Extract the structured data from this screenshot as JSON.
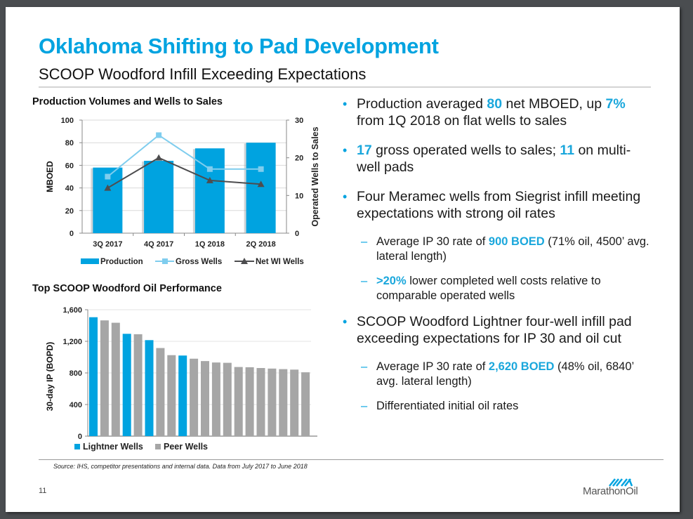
{
  "slide": {
    "title": "Oklahoma Shifting to Pad Development",
    "subtitle": "SCOOP Woodford Infill Exceeding Expectations",
    "page_number": "11",
    "source": "Source: IHS, competitor presentations and internal data. Data from July 2017 to June 2018",
    "logo_text": "MarathonOil",
    "accent_color": "#00a3e0"
  },
  "bullets": [
    {
      "type": "main",
      "parts": [
        {
          "t": "Production averaged "
        },
        {
          "t": "80",
          "hl": true
        },
        {
          "t": " net MBOED, up "
        },
        {
          "t": "7%",
          "hl": true
        },
        {
          "t": " from 1Q 2018 on flat wells to sales"
        }
      ]
    },
    {
      "type": "main",
      "parts": [
        {
          "t": "17",
          "hl": true
        },
        {
          "t": " gross operated wells to sales; "
        },
        {
          "t": "11",
          "hl": true
        },
        {
          "t": " on multi-well pads"
        }
      ]
    },
    {
      "type": "main",
      "parts": [
        {
          "t": "Four Meramec wells from Siegrist infill meeting expectations with strong oil rates"
        }
      ]
    },
    {
      "type": "sub",
      "parts": [
        {
          "t": "Average IP 30 rate of "
        },
        {
          "t": "900 BOED",
          "hl": true
        },
        {
          "t": " (71% oil, 4500’ avg. lateral length)"
        }
      ]
    },
    {
      "type": "sub",
      "parts": [
        {
          "t": ">20%",
          "hl": true
        },
        {
          "t": " lower completed well costs relative to comparable operated wells"
        }
      ]
    },
    {
      "type": "main",
      "parts": [
        {
          "t": "SCOOP Woodford Lightner four-well infill pad exceeding expectations for IP 30 and oil cut"
        }
      ]
    },
    {
      "type": "sub",
      "parts": [
        {
          "t": "Average IP 30 rate of "
        },
        {
          "t": "2,620 BOED",
          "hl": true
        },
        {
          "t": " (48% oil, 6840’ avg. lateral length)"
        }
      ]
    },
    {
      "type": "sub",
      "parts": [
        {
          "t": "Differentiated initial oil rates"
        }
      ]
    }
  ],
  "chart_data": [
    {
      "type": "bar",
      "title": "Production Volumes and Wells to Sales",
      "categories": [
        "3Q 2017",
        "4Q 2017",
        "1Q 2018",
        "2Q 2018"
      ],
      "ylabel": "MBOED",
      "y2label": "Operated Wells to Sales",
      "ylim": [
        0,
        100
      ],
      "yticks": [
        0,
        20,
        40,
        60,
        80,
        100
      ],
      "y2lim": [
        0,
        30
      ],
      "y2ticks": [
        0,
        10,
        20,
        30
      ],
      "grid": true,
      "legend_position": "bottom",
      "series": [
        {
          "name": "Production",
          "type": "bar",
          "axis": "left",
          "color": "#00a3e0",
          "values": [
            58,
            64,
            75,
            80
          ]
        },
        {
          "name": "Gross Wells",
          "type": "line",
          "axis": "right",
          "marker": "square",
          "color": "#7fcdee",
          "values": [
            15,
            26,
            17,
            17
          ]
        },
        {
          "name": "Net WI Wells",
          "type": "line",
          "axis": "right",
          "marker": "triangle",
          "color": "#4d4d4f",
          "values": [
            12,
            20,
            14,
            13
          ]
        }
      ]
    },
    {
      "type": "bar",
      "title": "Top SCOOP Woodford Oil Performance",
      "ylabel": "30-day IP (BOPD)",
      "ylim": [
        0,
        1600
      ],
      "yticks": [
        0,
        400,
        800,
        1200,
        1600
      ],
      "ytick_labels": [
        "0",
        "400",
        "800",
        "1,200",
        "1,600"
      ],
      "grid": true,
      "legend_position": "bottom-left",
      "legend": [
        {
          "name": "Lightner Wells",
          "color": "#00a3e0"
        },
        {
          "name": "Peer Wells",
          "color": "#a6a6a6"
        }
      ],
      "values": [
        1505,
        1465,
        1435,
        1295,
        1290,
        1215,
        1115,
        1025,
        1020,
        980,
        950,
        932,
        928,
        875,
        872,
        862,
        855,
        848,
        842,
        808
      ],
      "groups": [
        "Lightner Wells",
        "Peer Wells",
        "Peer Wells",
        "Lightner Wells",
        "Peer Wells",
        "Lightner Wells",
        "Peer Wells",
        "Peer Wells",
        "Lightner Wells",
        "Peer Wells",
        "Peer Wells",
        "Peer Wells",
        "Peer Wells",
        "Peer Wells",
        "Peer Wells",
        "Peer Wells",
        "Peer Wells",
        "Peer Wells",
        "Peer Wells",
        "Peer Wells"
      ]
    }
  ]
}
